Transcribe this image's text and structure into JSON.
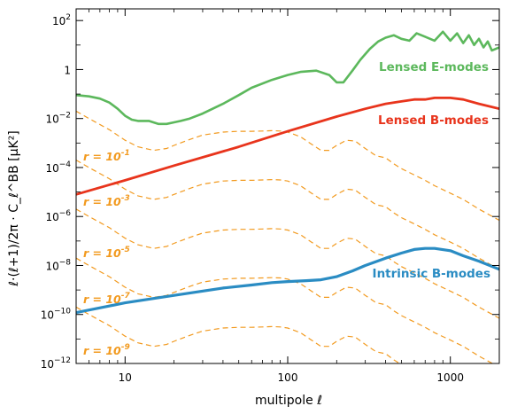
{
  "chart_data": {
    "type": "line",
    "xlabel": "multipole ℓ",
    "ylabel": "ℓ·(ℓ+1)/2π · C_ℓ^BB [μK²]",
    "xscale": "log",
    "yscale": "log",
    "xlim": [
      5,
      2000
    ],
    "ylim": [
      1e-12,
      300
    ],
    "x_ticks": [
      10,
      100,
      1000
    ],
    "x_tick_labels": [
      "10",
      "100",
      "1000"
    ],
    "y_ticks": [
      1e-12,
      1e-10,
      1e-08,
      1e-06,
      0.0001,
      0.01,
      1,
      100
    ],
    "y_tick_labels": [
      {
        "base": "10",
        "exp": "−12"
      },
      {
        "base": "10",
        "exp": "−10"
      },
      {
        "base": "10",
        "exp": "−8"
      },
      {
        "base": "10",
        "exp": "−6"
      },
      {
        "base": "10",
        "exp": "−4"
      },
      {
        "base": "10",
        "exp": "−2"
      },
      {
        "base": "1",
        "exp": ""
      },
      {
        "base": "10",
        "exp": "2"
      }
    ],
    "grid": false,
    "legend": "none",
    "series": [
      {
        "name": "Lensed E-modes",
        "color": "#5cb85c",
        "style": "solid",
        "x": [
          5,
          6,
          7,
          8,
          9,
          10,
          11,
          12,
          14,
          16,
          18,
          20,
          22,
          25,
          30,
          40,
          50,
          60,
          80,
          100,
          120,
          150,
          180,
          200,
          220,
          250,
          280,
          320,
          360,
          400,
          450,
          500,
          560,
          620,
          700,
          800,
          900,
          1000,
          1100,
          1200,
          1300,
          1400,
          1500,
          1600,
          1700,
          1800,
          2000
        ],
        "y": [
          0.09,
          0.08,
          0.065,
          0.045,
          0.025,
          0.013,
          0.009,
          0.008,
          0.008,
          0.006,
          0.006,
          0.007,
          0.008,
          0.01,
          0.016,
          0.04,
          0.09,
          0.18,
          0.38,
          0.6,
          0.8,
          0.9,
          0.6,
          0.3,
          0.3,
          0.9,
          2.5,
          7,
          14,
          20,
          25,
          18,
          15,
          30,
          22,
          15,
          35,
          15,
          30,
          12,
          25,
          10,
          18,
          8,
          14,
          6,
          8
        ]
      },
      {
        "name": "Lensed B-modes",
        "color": "#e8341c",
        "style": "solid",
        "x": [
          5,
          10,
          20,
          50,
          100,
          200,
          300,
          400,
          500,
          600,
          700,
          800,
          900,
          1000,
          1200,
          1500,
          2000
        ],
        "y": [
          8e-06,
          3e-05,
          0.00012,
          0.0007,
          0.003,
          0.012,
          0.025,
          0.04,
          0.05,
          0.06,
          0.06,
          0.07,
          0.07,
          0.07,
          0.06,
          0.04,
          0.025
        ]
      },
      {
        "name": "Intrinsic B-modes",
        "color": "#2a8cc3",
        "style": "solid",
        "x": [
          5,
          10,
          20,
          40,
          60,
          80,
          100,
          130,
          160,
          200,
          250,
          300,
          400,
          500,
          600,
          700,
          800,
          1000,
          1200,
          1500,
          2000
        ],
        "y": [
          1.2e-10,
          3e-10,
          6e-10,
          1.2e-09,
          1.6e-09,
          2e-09,
          2.2e-09,
          2.4e-09,
          2.6e-09,
          3.5e-09,
          6e-09,
          1e-08,
          2e-08,
          3.2e-08,
          4.5e-08,
          5e-08,
          5e-08,
          4e-08,
          2.5e-08,
          1.5e-08,
          7e-09
        ]
      }
    ],
    "tensor_curves": {
      "color": "#f29a1f",
      "style": "dashed",
      "labels": [
        {
          "base": "r = 10",
          "exp": "-1"
        },
        {
          "base": "r = 10",
          "exp": "-3"
        },
        {
          "base": "r = 10",
          "exp": "-5"
        },
        {
          "base": "r = 10",
          "exp": "-7"
        },
        {
          "base": "r = 10",
          "exp": "-9"
        }
      ],
      "shape": {
        "x": [
          5,
          6,
          8,
          10,
          12,
          15,
          18,
          20,
          25,
          30,
          40,
          50,
          60,
          70,
          80,
          90,
          100,
          120,
          140,
          160,
          180,
          200,
          230,
          260,
          300,
          350,
          400,
          450,
          500,
          600,
          700,
          800,
          1000,
          1200,
          1500,
          2000
        ],
        "y": [
          0.02,
          0.01,
          0.0035,
          0.0013,
          0.0007,
          0.0005,
          0.0006,
          0.0008,
          0.0014,
          0.0021,
          0.0028,
          0.003,
          0.003,
          0.0031,
          0.0032,
          0.0031,
          0.0028,
          0.0018,
          0.0009,
          0.0005,
          0.0005,
          0.0008,
          0.0013,
          0.0012,
          0.0006,
          0.0003,
          0.00025,
          0.00014,
          9e-05,
          5e-05,
          3e-05,
          1.8e-05,
          9e-06,
          5e-06,
          2e-06,
          7e-07
        ]
      },
      "r_values": [
        0.1,
        0.001,
        1e-05,
        1e-07,
        1e-09
      ]
    }
  }
}
